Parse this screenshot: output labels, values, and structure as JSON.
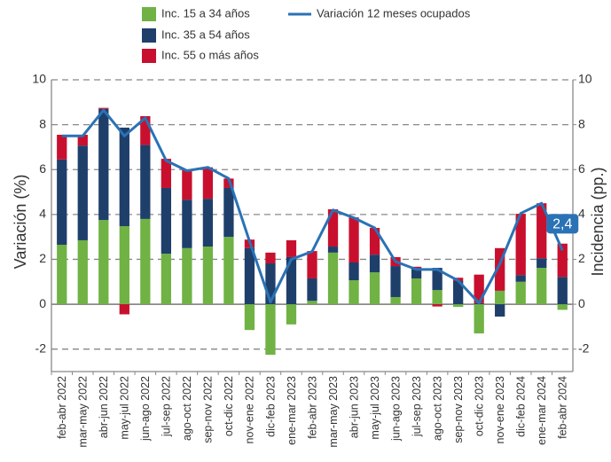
{
  "chart_data": {
    "type": "bar",
    "y_label": "Variación (%)",
    "y2_label": "Incidencia (pp.)",
    "categories": [
      "feb-abr 2022",
      "mar-may 2022",
      "abr-jun 2022",
      "may-jul 2022",
      "jun-ago 2022",
      "jul-sep 2022",
      "ago-oct 2022",
      "sep-nov 2022",
      "oct-dic 2022",
      "nov-ene 2022",
      "dic-feb 2023",
      "ene-mar 2023",
      "feb-abr 2023",
      "mar-may 2023",
      "abr-jun 2023",
      "may-jul 2023",
      "jun-ago 2023",
      "jul-sep 2023",
      "ago-oct 2023",
      "sep-nov 2023",
      "oct-dic 2023",
      "nov-ene 2023",
      "dic-feb 2024",
      "ene-mar 2024",
      "feb-abr 2024"
    ],
    "series": [
      {
        "name": "Inc. 15 a 34 años",
        "type": "bar",
        "color": "#70b244",
        "values": [
          2.65,
          2.85,
          3.75,
          3.48,
          3.8,
          2.25,
          2.5,
          2.57,
          3.0,
          -1.15,
          -2.25,
          -0.9,
          0.15,
          2.3,
          1.07,
          1.42,
          0.32,
          1.15,
          0.63,
          -0.12,
          -1.3,
          0.6,
          1.0,
          1.62,
          -0.25
        ]
      },
      {
        "name": "Inc. 35 a 54 años",
        "type": "bar",
        "color": "#1f3f6b",
        "values": [
          3.8,
          4.22,
          4.95,
          4.39,
          3.3,
          2.93,
          2.16,
          2.13,
          2.18,
          2.5,
          1.82,
          2.1,
          1.0,
          0.27,
          0.79,
          0.79,
          1.38,
          0.47,
          0.99,
          1.03,
          0.05,
          -0.55,
          0.3,
          0.43,
          1.22
        ]
      },
      {
        "name": "Inc. 55 o más años",
        "type": "bar",
        "color": "#c8102e",
        "values": [
          1.1,
          0.48,
          0.05,
          -0.45,
          1.28,
          1.3,
          1.34,
          1.4,
          0.42,
          0.38,
          0.48,
          0.75,
          1.22,
          1.66,
          2.01,
          1.19,
          0.4,
          0.05,
          -0.1,
          0.15,
          1.27,
          1.9,
          2.73,
          2.45,
          1.48
        ]
      },
      {
        "name": "Variación 12 meses ocupados",
        "type": "line",
        "color": "#2a72b5",
        "values": [
          7.5,
          7.5,
          8.65,
          7.5,
          8.3,
          6.4,
          5.95,
          6.1,
          5.6,
          2.8,
          0.1,
          2.0,
          2.35,
          4.2,
          3.85,
          3.4,
          1.9,
          1.55,
          1.55,
          1.05,
          0.05,
          1.8,
          4.05,
          4.5,
          2.4
        ],
        "value_labels": [
          null,
          null,
          null,
          null,
          null,
          null,
          null,
          null,
          null,
          null,
          null,
          null,
          null,
          null,
          null,
          null,
          null,
          null,
          null,
          null,
          null,
          null,
          null,
          null,
          "2,4"
        ]
      }
    ],
    "ylim": [
      -3,
      10
    ],
    "yticks": [
      -2,
      0,
      2,
      4,
      6,
      8,
      10
    ],
    "y2lim": [
      -3,
      10
    ],
    "y2ticks": [
      -2,
      0,
      2,
      4,
      6,
      8,
      10
    ],
    "grid": true
  }
}
